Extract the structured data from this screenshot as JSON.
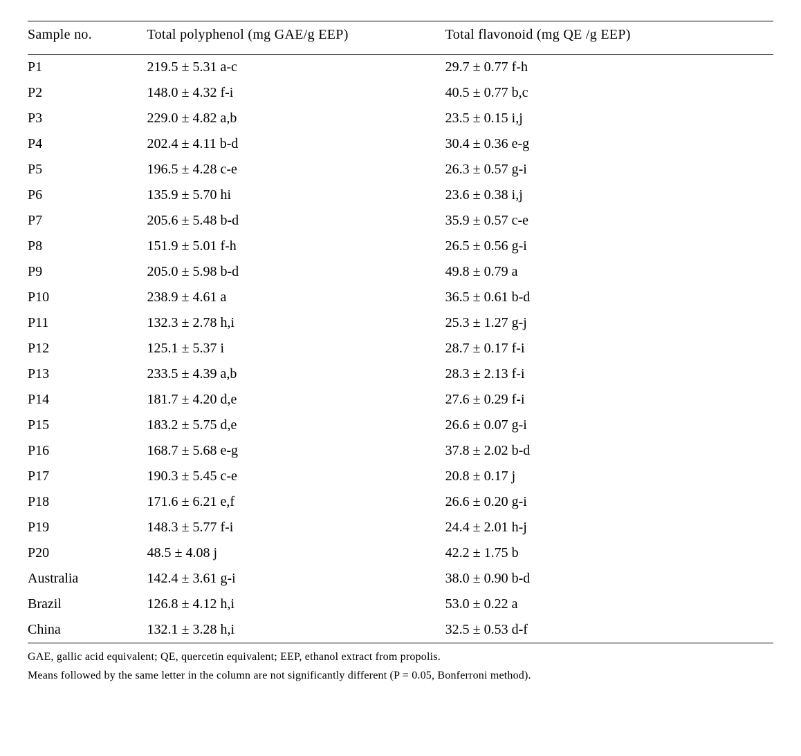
{
  "table": {
    "columns": [
      "Sample no.",
      "Total polyphenol (mg GAE/g EEP)",
      "Total flavonoid (mg QE /g EEP)"
    ],
    "column_widths_pct": [
      16,
      40,
      44
    ],
    "border_color": "#000000",
    "background_color": "#ffffff",
    "text_color": "#000000",
    "font_family": "Times New Roman",
    "header_fontsize_pt": 15,
    "body_fontsize_pt": 15,
    "rows": [
      {
        "sample": "P1",
        "polyphenol": "219.5 ± 5.31 a-c",
        "flavonoid": "29.7 ± 0.77 f-h"
      },
      {
        "sample": "P2",
        "polyphenol": "148.0 ± 4.32 f-i",
        "flavonoid": "40.5 ± 0.77 b,c"
      },
      {
        "sample": "P3",
        "polyphenol": "229.0 ± 4.82 a,b",
        "flavonoid": "23.5 ± 0.15 i,j"
      },
      {
        "sample": "P4",
        "polyphenol": "202.4 ± 4.11 b-d",
        "flavonoid": "30.4 ± 0.36 e-g"
      },
      {
        "sample": "P5",
        "polyphenol": "196.5 ± 4.28 c-e",
        "flavonoid": "26.3 ± 0.57 g-i"
      },
      {
        "sample": "P6",
        "polyphenol": "135.9 ± 5.70 hi",
        "flavonoid": "23.6 ± 0.38 i,j"
      },
      {
        "sample": "P7",
        "polyphenol": "205.6 ± 5.48 b-d",
        "flavonoid": "35.9 ± 0.57 c-e"
      },
      {
        "sample": "P8",
        "polyphenol": "151.9 ± 5.01 f-h",
        "flavonoid": "26.5 ± 0.56 g-i"
      },
      {
        "sample": "P9",
        "polyphenol": "205.0 ± 5.98 b-d",
        "flavonoid": "49.8 ± 0.79 a"
      },
      {
        "sample": "P10",
        "polyphenol": "238.9 ± 4.61 a",
        "flavonoid": "36.5 ± 0.61 b-d"
      },
      {
        "sample": "P11",
        "polyphenol": "132.3 ± 2.78 h,i",
        "flavonoid": "25.3 ± 1.27 g-j"
      },
      {
        "sample": "P12",
        "polyphenol": "125.1 ± 5.37 i",
        "flavonoid": "28.7 ± 0.17 f-i"
      },
      {
        "sample": "P13",
        "polyphenol": "233.5 ± 4.39 a,b",
        "flavonoid": "28.3 ± 2.13 f-i"
      },
      {
        "sample": "P14",
        "polyphenol": "181.7 ± 4.20 d,e",
        "flavonoid": "27.6 ± 0.29 f-i"
      },
      {
        "sample": "P15",
        "polyphenol": "183.2 ± 5.75 d,e",
        "flavonoid": "26.6 ± 0.07 g-i"
      },
      {
        "sample": "P16",
        "polyphenol": "168.7 ± 5.68 e-g",
        "flavonoid": "37.8 ± 2.02 b-d"
      },
      {
        "sample": "P17",
        "polyphenol": "190.3 ± 5.45 c-e",
        "flavonoid": "20.8 ± 0.17 j"
      },
      {
        "sample": "P18",
        "polyphenol": "171.6 ± 6.21 e,f",
        "flavonoid": "26.6 ± 0.20 g-i"
      },
      {
        "sample": "P19",
        "polyphenol": "148.3 ± 5.77 f-i",
        "flavonoid": "24.4 ± 2.01 h-j"
      },
      {
        "sample": "P20",
        "polyphenol": "48.5 ± 4.08 j",
        "flavonoid": "42.2 ± 1.75 b"
      },
      {
        "sample": "Australia",
        "polyphenol": "142.4 ± 3.61 g-i",
        "flavonoid": "38.0 ± 0.90 b-d"
      },
      {
        "sample": "Brazil",
        "polyphenol": "126.8 ± 4.12 h,i",
        "flavonoid": "53.0 ± 0.22 a"
      },
      {
        "sample": "China",
        "polyphenol": "132.1 ± 3.28 h,i",
        "flavonoid": "32.5 ± 0.53 d-f"
      }
    ]
  },
  "footnotes": {
    "fontsize_pt": 12,
    "lines": [
      "GAE, gallic acid equivalent; QE, quercetin equivalent; EEP, ethanol extract from propolis.",
      "Means followed by the same letter in the column are not significantly different (P = 0.05, Bonferroni method)."
    ]
  }
}
